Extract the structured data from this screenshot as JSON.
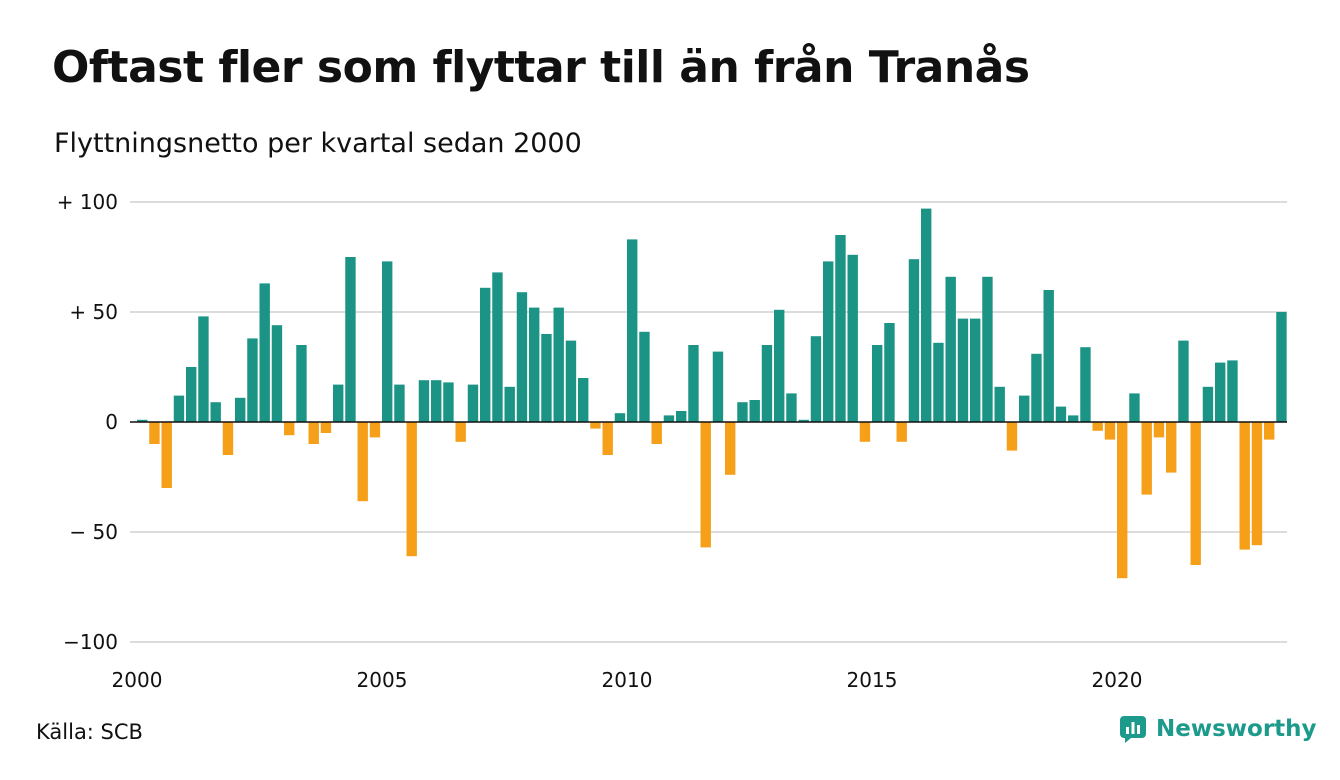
{
  "title": "Oftast fler som flyttar till än från Tranås",
  "subtitle": "Flyttningsnetto per kvartal sedan 2000",
  "source": "Källa: SCB",
  "brand": {
    "name": "Newsworthy",
    "icon": "bar-chart-logo-icon",
    "color": "#1c9a8b"
  },
  "colors": {
    "positive": "#1b9486",
    "negative": "#f6a01a",
    "grid": "#dcdcdc",
    "zero": "#111111"
  },
  "chart_data": {
    "type": "bar",
    "title": "Oftast fler som flyttar till än från Tranås",
    "subtitle": "Flyttningsnetto per kvartal sedan 2000",
    "ylim": [
      -100,
      100
    ],
    "yticks": [
      100,
      50,
      0,
      -50,
      -100
    ],
    "ytick_labels": [
      "+ 100",
      "+  50",
      "0",
      "− 50",
      "−100"
    ],
    "xtick_labels": [
      "2000",
      "2005",
      "2010",
      "2015",
      "2020"
    ],
    "grid": true,
    "start_year": 2000,
    "values": [
      1,
      -10,
      -30,
      12,
      25,
      48,
      9,
      -15,
      11,
      38,
      63,
      44,
      -6,
      35,
      -10,
      -5,
      17,
      75,
      -36,
      -7,
      73,
      17,
      -61,
      19,
      19,
      18,
      -9,
      17,
      61,
      68,
      16,
      59,
      52,
      40,
      52,
      37,
      20,
      -3,
      -15,
      4,
      83,
      41,
      -10,
      3,
      5,
      35,
      -57,
      32,
      -24,
      9,
      10,
      35,
      51,
      13,
      1,
      39,
      73,
      85,
      76,
      -9,
      35,
      45,
      -9,
      74,
      97,
      36,
      66,
      47,
      47,
      66,
      16,
      -13,
      12,
      31,
      60,
      7,
      3,
      34,
      -4,
      -8,
      -71,
      13,
      -33,
      -7,
      -23,
      37,
      -65,
      16,
      27,
      28,
      -58,
      -56,
      -8,
      50
    ]
  }
}
